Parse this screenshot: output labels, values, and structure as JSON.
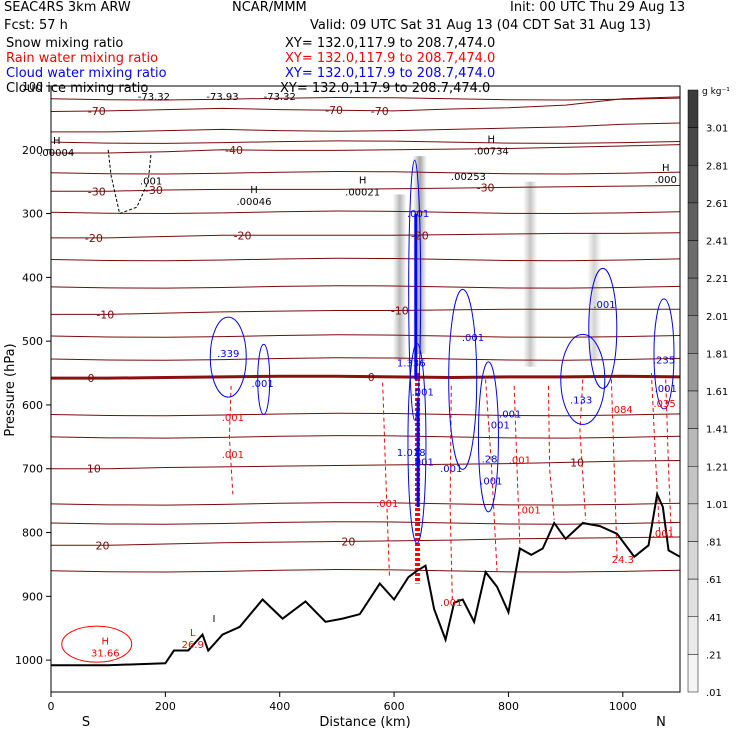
{
  "header": {
    "project_model": "SEAC4RS  3km ARW",
    "org": "NCAR/MMM",
    "init": "Init: 00 UTC Thu 29 Aug 13",
    "fcst": "Fcst:   57 h",
    "valid": "Valid: 09 UTC Sat 31 Aug 13 (04 CDT Sat 31 Aug 13)",
    "rows": [
      {
        "field": "Snow mixing ratio",
        "xy": "XY= 132.0,117.9 to 208.7,474.0",
        "color": "#000000"
      },
      {
        "field": "Rain water mixing ratio",
        "xy": "XY= 132.0,117.9 to 208.7,474.0",
        "color": "#ff0000"
      },
      {
        "field": "Cloud water mixing ratio",
        "xy": "XY= 132.0,117.9 to 208.7,474.0",
        "color": "#0000ff"
      },
      {
        "field": "Cloud ice mixing ratio",
        "xy": "XY= 132.0,117.9 to 208.7,474.0",
        "color": "#000000"
      }
    ]
  },
  "chart_data": {
    "type": "cross-section",
    "xlabel": "Distance (km)",
    "ylabel": "Pressure (hPa)",
    "xlim": [
      0,
      1100
    ],
    "ylim": [
      1050,
      100
    ],
    "xticks": [
      0,
      200,
      400,
      600,
      800,
      1000
    ],
    "yticks": [
      100,
      200,
      300,
      400,
      500,
      600,
      700,
      800,
      900,
      1000
    ],
    "endpoints": {
      "left": "S",
      "right": "N"
    },
    "colorbar": {
      "unit": "g kg⁻¹",
      "levels": [
        "3.01",
        "2.81",
        "2.61",
        "2.41",
        "2.21",
        "2.01",
        "1.81",
        "1.61",
        "1.41",
        "1.21",
        "1.01",
        ".81",
        ".61",
        ".41",
        ".21",
        ".01"
      ],
      "colors": [
        "#3c3c3c",
        "#484848",
        "#545454",
        "#606060",
        "#6c6c6c",
        "#787878",
        "#888888",
        "#989898",
        "#a8a8a8",
        "#b8b8b8",
        "#c4c4c4",
        "#cccccc",
        "#d6d6d6",
        "#e0e0e0",
        "#eaeaea",
        "#f4f4f4"
      ]
    },
    "colors": {
      "temperature": "#7a0a0a",
      "rain": "#ff0000",
      "cloud_water": "#0000ff",
      "terrain": "#000000",
      "freezing": "#8b1010"
    },
    "terrain": {
      "x": [
        0,
        100,
        200,
        215,
        240,
        265,
        275,
        300,
        330,
        370,
        405,
        445,
        480,
        510,
        540,
        575,
        600,
        625,
        640,
        655,
        670,
        690,
        705,
        720,
        740,
        760,
        780,
        800,
        820,
        840,
        860,
        880,
        900,
        930,
        960,
        990,
        1020,
        1045,
        1060,
        1070,
        1080,
        1100
      ],
      "p": [
        1008,
        1008,
        1005,
        985,
        985,
        960,
        985,
        960,
        948,
        905,
        935,
        908,
        940,
        935,
        928,
        880,
        905,
        870,
        860,
        852,
        920,
        968,
        910,
        905,
        940,
        862,
        885,
        925,
        825,
        835,
        825,
        785,
        810,
        785,
        790,
        802,
        838,
        820,
        740,
        760,
        828,
        838
      ]
    },
    "isotherms": [
      {
        "label": "-70",
        "p": [
          140,
          139,
          137,
          135,
          137,
          138,
          139,
          136,
          134,
          130,
          120,
          117
        ],
        "label_x": [
          80,
          495,
          575
        ]
      },
      {
        "label": "",
        "p": [
          172,
          172,
          170,
          168,
          170,
          171,
          170,
          168,
          166,
          164,
          160,
          158
        ],
        "label_x": []
      },
      {
        "label": "-40",
        "p": [
          205,
          205,
          203,
          200,
          201,
          201,
          200,
          199,
          198,
          196,
          194,
          192
        ],
        "label_x": [
          320
        ]
      },
      {
        "label": "-30",
        "p": [
          265,
          265,
          263,
          262,
          262,
          262,
          261,
          260,
          259,
          258,
          257,
          256
        ],
        "label_x": [
          80,
          180,
          760
        ]
      },
      {
        "label": "-20",
        "p": [
          338,
          338,
          336,
          334,
          334,
          334,
          334,
          333,
          332,
          331,
          331,
          330
        ],
        "label_x": [
          75,
          335,
          645
        ]
      },
      {
        "label": "-10",
        "p": [
          458,
          458,
          456,
          454,
          453,
          452,
          452,
          451,
          450,
          450,
          450,
          450
        ],
        "label_x": [
          95,
          610
        ]
      },
      {
        "label": "0",
        "p": [
          558,
          558,
          557,
          556,
          555,
          555,
          556,
          557,
          556,
          556,
          555,
          556
        ],
        "label_x": [
          70,
          560
        ]
      },
      {
        "label": "10",
        "p": [
          700,
          700,
          698,
          697,
          696,
          695,
          694,
          693,
          692,
          690,
          688,
          687
        ],
        "label_x": [
          75,
          920
        ]
      },
      {
        "label": "20",
        "p": [
          820,
          820,
          818,
          816,
          815,
          814,
          813,
          812,
          810,
          809,
          808,
          807
        ],
        "label_x": [
          90,
          520
        ]
      }
    ],
    "iso_x": [
      0,
      100,
      200,
      300,
      400,
      500,
      600,
      700,
      800,
      900,
      1000,
      1100
    ],
    "extra_isolines_p": [
      120,
      188,
      236,
      298,
      372,
      415,
      492,
      528,
      615,
      650,
      755,
      785,
      860
    ],
    "maxima": [
      {
        "label": "H",
        "value": ".00004",
        "x": 10,
        "p": 200
      },
      {
        "label": "",
        "value": ".001",
        "x": 175,
        "p": 245
      },
      {
        "label": "H",
        "value": ".00046",
        "x": 355,
        "p": 277
      },
      {
        "label": "H",
        "value": ".00021",
        "x": 545,
        "p": 262
      },
      {
        "label": "",
        "value": ".00253",
        "x": 730,
        "p": 238
      },
      {
        "label": "H",
        "value": ".00734",
        "x": 770,
        "p": 198
      },
      {
        "label": "H",
        "value": ".000",
        "x": 1075,
        "p": 243
      },
      {
        "label": "H",
        "value": "31.66",
        "x": 95,
        "p": 985
      },
      {
        "label": "L",
        "value": "26.9",
        "x": 248,
        "p": 972
      },
      {
        "label": "I",
        "value": "",
        "x": 285,
        "p": 950
      }
    ],
    "top_labels": [
      "-73.32",
      "-73.93",
      "-73.32"
    ],
    "rain_labels": [
      {
        "value": ".001",
        "x": 318,
        "p": 625
      },
      {
        "value": ".001",
        "x": 318,
        "p": 683
      },
      {
        "value": ".001",
        "x": 588,
        "p": 760
      },
      {
        "value": ".001",
        "x": 700,
        "p": 915
      },
      {
        "value": ".001",
        "x": 837,
        "p": 770
      },
      {
        "value": ".084",
        "x": 998,
        "p": 613
      },
      {
        "value": ".035",
        "x": 1073,
        "p": 603
      },
      {
        "value": ".001",
        "x": 1070,
        "p": 807
      },
      {
        "value": "24.3",
        "x": 1000,
        "p": 848
      },
      {
        "value": ".001",
        "x": 820,
        "p": 692
      }
    ],
    "cloud_labels": [
      {
        "value": ".339",
        "x": 310,
        "p": 525
      },
      {
        "value": ".001",
        "x": 370,
        "p": 572
      },
      {
        "value": "1.336",
        "x": 630,
        "p": 540
      },
      {
        "value": ".001",
        "x": 650,
        "p": 585
      },
      {
        "value": "1.018",
        "x": 630,
        "p": 680
      },
      {
        "value": ".001",
        "x": 650,
        "p": 695
      },
      {
        "value": ".001",
        "x": 700,
        "p": 705
      },
      {
        "value": ".001",
        "x": 738,
        "p": 500
      },
      {
        "value": ".28",
        "x": 767,
        "p": 690
      },
      {
        "value": ".001",
        "x": 783,
        "p": 637
      },
      {
        "value": ".001",
        "x": 803,
        "p": 620
      },
      {
        "value": ".001",
        "x": 770,
        "p": 725
      },
      {
        "value": ".133",
        "x": 927,
        "p": 598
      },
      {
        "value": ".001",
        "x": 968,
        "p": 448
      },
      {
        "value": ".235",
        "x": 1072,
        "p": 535
      },
      {
        "value": ".001",
        "x": 1075,
        "p": 580
      },
      {
        "value": ".001",
        "x": 642,
        "p": 305
      }
    ],
    "snow_columns": [
      {
        "x": 610,
        "p_top": 270,
        "p_bot": 530,
        "strength": 0.55
      },
      {
        "x": 645,
        "p_top": 210,
        "p_bot": 520,
        "strength": 0.7
      },
      {
        "x": 838,
        "p_top": 250,
        "p_bot": 540,
        "strength": 0.45
      },
      {
        "x": 950,
        "p_top": 330,
        "p_bot": 530,
        "strength": 0.35
      }
    ],
    "heavy_rain": {
      "x": 641,
      "p_top": 550,
      "p_bot": 880
    }
  }
}
